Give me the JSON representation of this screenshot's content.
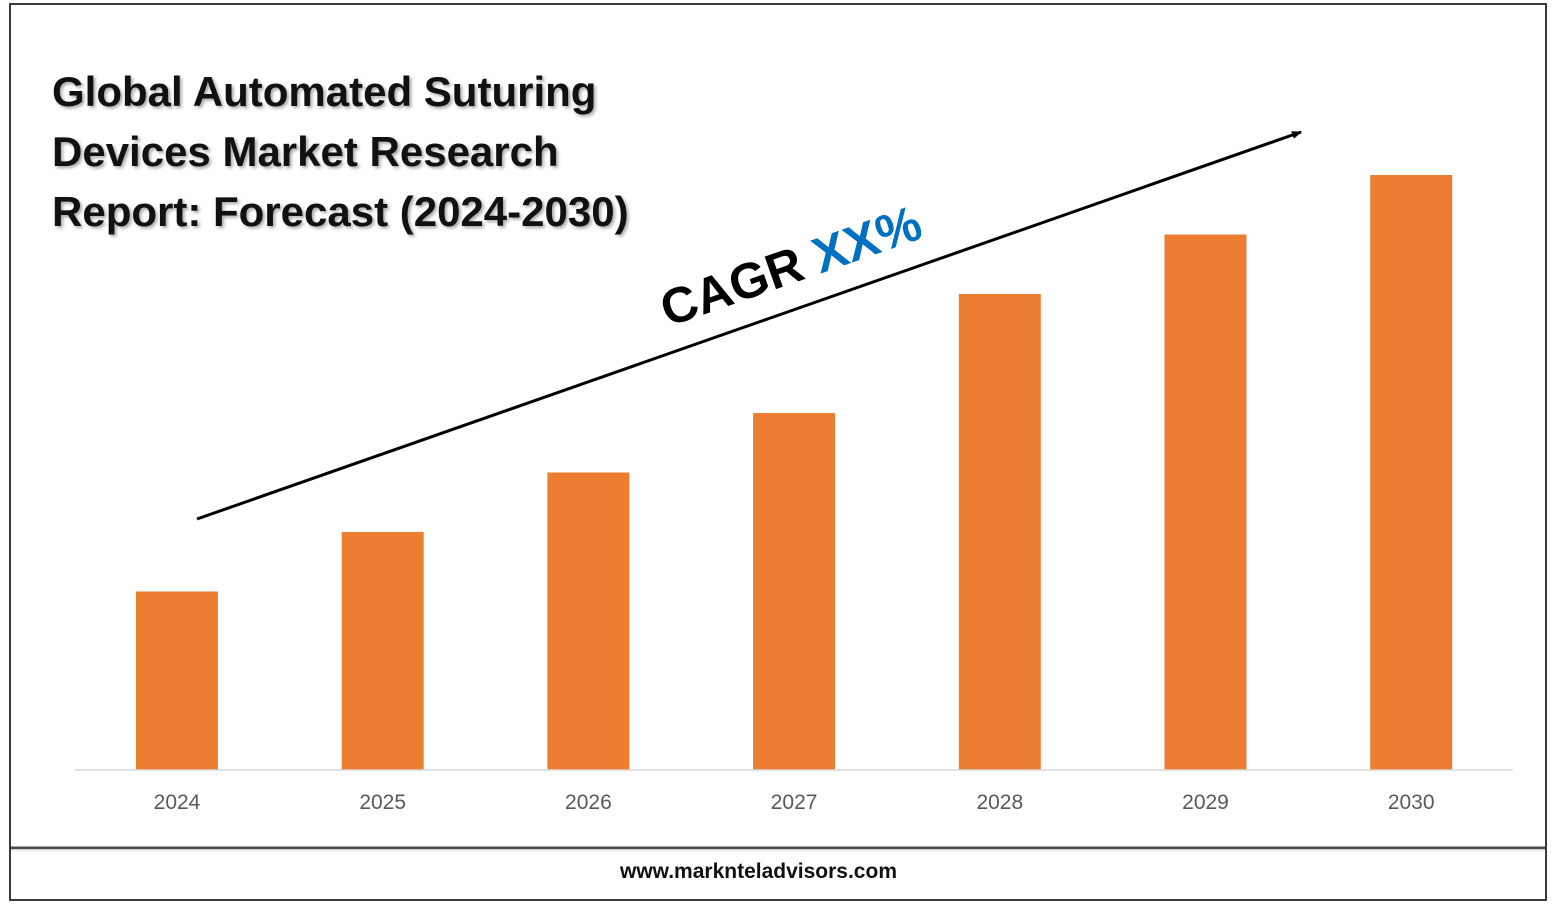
{
  "chart_data": {
    "type": "bar",
    "title_lines": [
      "Global Automated Suturing",
      "Devices Market Research",
      "Report: Forecast (2024-2030)"
    ],
    "categories": [
      "2024",
      "2025",
      "2026",
      "2027",
      "2028",
      "2029",
      "2030"
    ],
    "values": [
      30,
      40,
      50,
      60,
      80,
      90,
      100
    ],
    "ylim": [
      0,
      100
    ],
    "bar_color": "#ED7D31",
    "annotation": {
      "prefix": "CAGR",
      "value": "XX%",
      "prefix_color": "#000000",
      "value_color": "#0070C0"
    },
    "grid": false,
    "legend": "none"
  },
  "footer": {
    "website": "www.marknteladvisors.com"
  }
}
